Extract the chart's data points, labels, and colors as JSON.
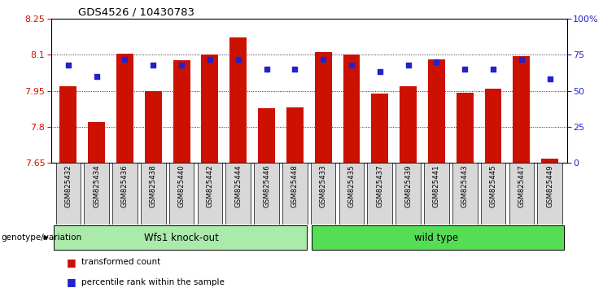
{
  "title": "GDS4526 / 10430783",
  "categories": [
    "GSM825432",
    "GSM825434",
    "GSM825436",
    "GSM825438",
    "GSM825440",
    "GSM825442",
    "GSM825444",
    "GSM825446",
    "GSM825448",
    "GSM825433",
    "GSM825435",
    "GSM825437",
    "GSM825439",
    "GSM825441",
    "GSM825443",
    "GSM825445",
    "GSM825447",
    "GSM825449"
  ],
  "bar_values": [
    7.967,
    7.82,
    8.105,
    7.95,
    8.077,
    8.1,
    8.173,
    7.876,
    7.88,
    8.11,
    8.101,
    7.938,
    7.967,
    8.08,
    7.94,
    7.957,
    8.095,
    7.668
  ],
  "dot_values": [
    68,
    60,
    72,
    68,
    68,
    72,
    72,
    65,
    65,
    72,
    68,
    63,
    68,
    70,
    65,
    65,
    72,
    58
  ],
  "bar_color": "#cc1100",
  "dot_color": "#2222cc",
  "ylim_left": [
    7.65,
    8.25
  ],
  "ylim_right": [
    0,
    100
  ],
  "yticks_left": [
    7.65,
    7.8,
    7.95,
    8.1,
    8.25
  ],
  "yticks_right": [
    0,
    25,
    50,
    75,
    100
  ],
  "ytick_labels_right": [
    "0",
    "25",
    "50",
    "75",
    "100%"
  ],
  "group1_label": "Wfs1 knock-out",
  "group2_label": "wild type",
  "group1_color": "#aaeaaa",
  "group2_color": "#55dd55",
  "group1_count": 9,
  "group2_count": 9,
  "legend_bar_label": "transformed count",
  "legend_dot_label": "percentile rank within the sample",
  "genotype_label": "genotype/variation",
  "bar_width": 0.6,
  "ybase": 7.65,
  "tick_label_color_left": "#cc1100",
  "tick_label_color_right": "#2222cc",
  "tick_box_color": "#d8d8d8"
}
